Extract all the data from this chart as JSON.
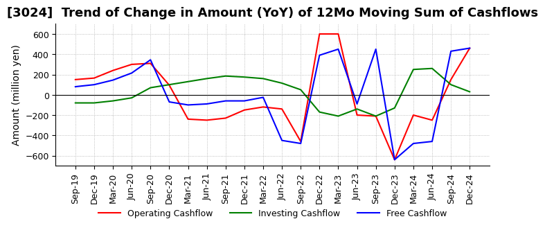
{
  "title": "[3024]  Trend of Change in Amount (YoY) of 12Mo Moving Sum of Cashflows",
  "ylabel": "Amount (million yen)",
  "ylim": [
    -700,
    700
  ],
  "yticks": [
    -600,
    -400,
    -200,
    0,
    200,
    400,
    600
  ],
  "x_labels": [
    "Sep-19",
    "Dec-19",
    "Mar-20",
    "Jun-20",
    "Sep-20",
    "Dec-20",
    "Mar-21",
    "Jun-21",
    "Sep-21",
    "Dec-21",
    "Mar-22",
    "Jun-22",
    "Sep-22",
    "Dec-22",
    "Mar-23",
    "Jun-23",
    "Sep-23",
    "Dec-23",
    "Mar-24",
    "Jun-24",
    "Sep-24",
    "Dec-24"
  ],
  "operating": [
    150,
    165,
    240,
    300,
    310,
    95,
    -240,
    -250,
    -230,
    -150,
    -120,
    -140,
    -460,
    600,
    600,
    -200,
    -210,
    -640,
    -200,
    -250,
    150,
    460
  ],
  "investing": [
    -80,
    -80,
    -60,
    -30,
    70,
    100,
    130,
    160,
    185,
    175,
    160,
    115,
    50,
    -170,
    -210,
    -140,
    -210,
    -130,
    250,
    260,
    100,
    30
  ],
  "free": [
    80,
    100,
    145,
    215,
    345,
    -70,
    -100,
    -90,
    -60,
    -60,
    -25,
    -450,
    -480,
    390,
    450,
    -90,
    450,
    -640,
    -480,
    -460,
    430,
    460
  ],
  "colors": {
    "operating": "#ff0000",
    "investing": "#008000",
    "free": "#0000ff"
  },
  "legend_labels": [
    "Operating Cashflow",
    "Investing Cashflow",
    "Free Cashflow"
  ],
  "background_color": "#ffffff",
  "title_fontsize": 13,
  "axis_fontsize": 10,
  "tick_fontsize": 9,
  "grid_color": "#aaaaaa",
  "grid_style": ":"
}
